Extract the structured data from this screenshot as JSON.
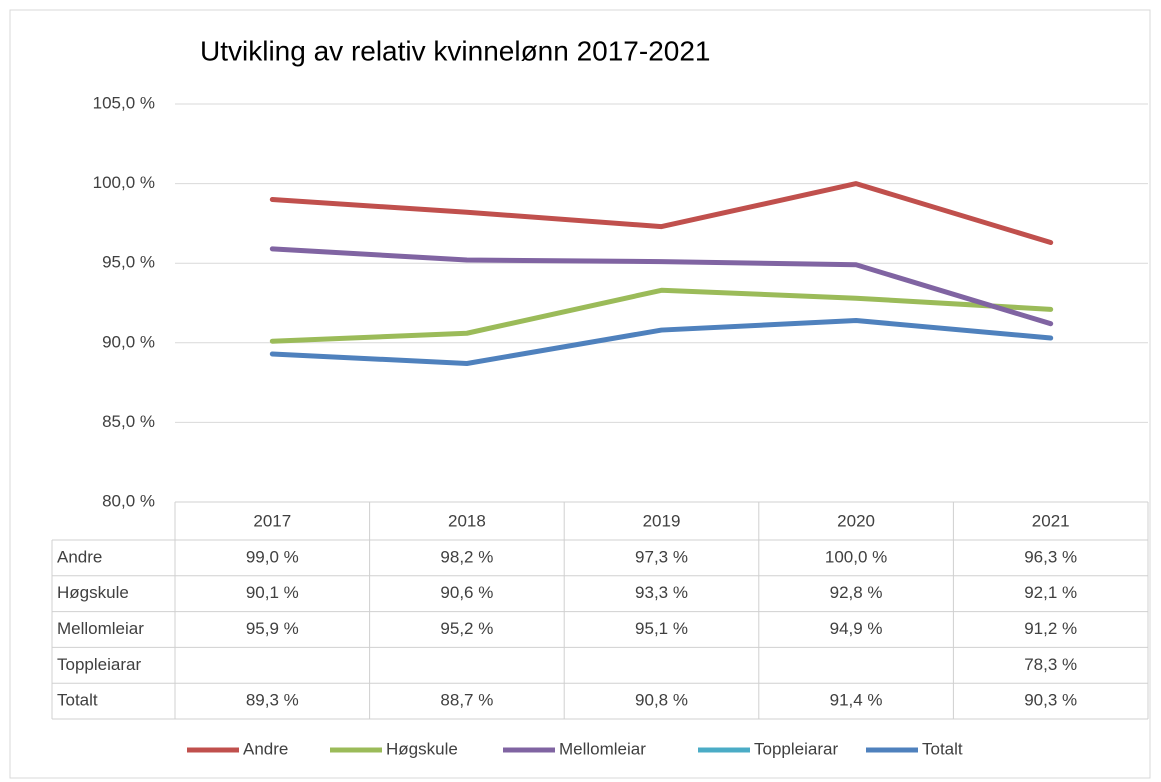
{
  "chart_data": {
    "type": "line",
    "title": "Utvikling av relativ kvinnelønn 2017-2021",
    "categories": [
      "2017",
      "2018",
      "2019",
      "2020",
      "2021"
    ],
    "ylim": [
      80,
      105
    ],
    "yticks": [
      {
        "value": 80,
        "label": "80,0 %"
      },
      {
        "value": 85,
        "label": "85,0 %"
      },
      {
        "value": 90,
        "label": "90,0 %"
      },
      {
        "value": 95,
        "label": "95,0 %"
      },
      {
        "value": 100,
        "label": "100,0 %"
      },
      {
        "value": 105,
        "label": "105,0 %"
      }
    ],
    "grid": true,
    "legend": "bottom",
    "series": [
      {
        "name": "Andre",
        "color": "#c0504d",
        "values": [
          99.0,
          98.2,
          97.3,
          100.0,
          96.3
        ],
        "value_labels": [
          "99,0 %",
          "98,2 %",
          "97,3 %",
          "100,0 %",
          "96,3 %"
        ]
      },
      {
        "name": "Høgskule",
        "color": "#9bbb59",
        "values": [
          90.1,
          90.6,
          93.3,
          92.8,
          92.1
        ],
        "value_labels": [
          "90,1 %",
          "90,6 %",
          "93,3 %",
          "92,8 %",
          "92,1 %"
        ]
      },
      {
        "name": "Mellomleiar",
        "color": "#8064a2",
        "values": [
          95.9,
          95.2,
          95.1,
          94.9,
          91.2
        ],
        "value_labels": [
          "95,9 %",
          "95,2 %",
          "95,1 %",
          "94,9 %",
          "91,2 %"
        ]
      },
      {
        "name": "Toppleiarar",
        "color": "#4bacc6",
        "values": [
          null,
          null,
          null,
          null,
          78.3
        ],
        "value_labels": [
          null,
          null,
          null,
          null,
          "78,3 %"
        ]
      },
      {
        "name": "Totalt",
        "color": "#4f81bd",
        "values": [
          89.3,
          88.7,
          90.8,
          91.4,
          90.3
        ],
        "value_labels": [
          "89,3 %",
          "88,7 %",
          "90,8 %",
          "91,4 %",
          "90,3 %"
        ]
      }
    ]
  }
}
